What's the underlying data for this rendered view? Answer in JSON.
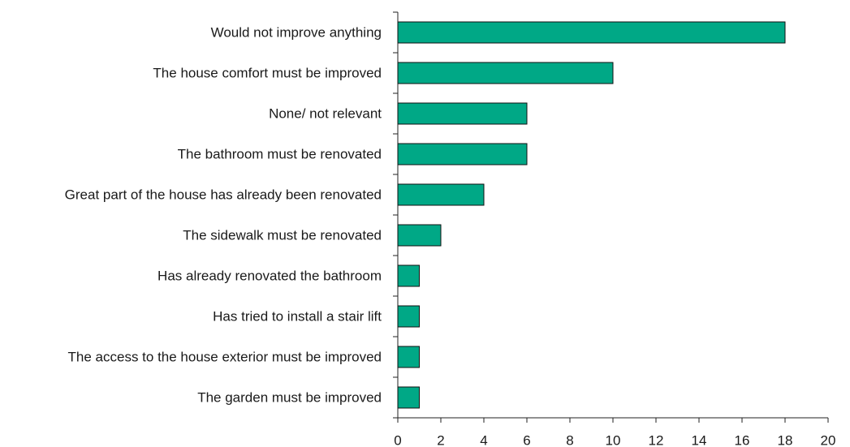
{
  "chart_data": {
    "type": "barh",
    "categories": [
      "Would not improve anything",
      "The house comfort must be improved",
      "None/ not relevant",
      "The bathroom must be renovated",
      "Great part of the house has already been renovated",
      "The sidewalk must be renovated",
      "Has already renovated the bathroom",
      "Has tried to install a stair lift",
      "The access to the house exterior must be improved",
      "The garden must be improved"
    ],
    "values": [
      18,
      10,
      6,
      6,
      4,
      2,
      1,
      1,
      1,
      1
    ],
    "color": "#00a886",
    "xlim": [
      0,
      20
    ],
    "xticks": [
      0,
      2,
      4,
      6,
      8,
      10,
      12,
      14,
      16,
      18,
      20
    ],
    "grid": false
  }
}
